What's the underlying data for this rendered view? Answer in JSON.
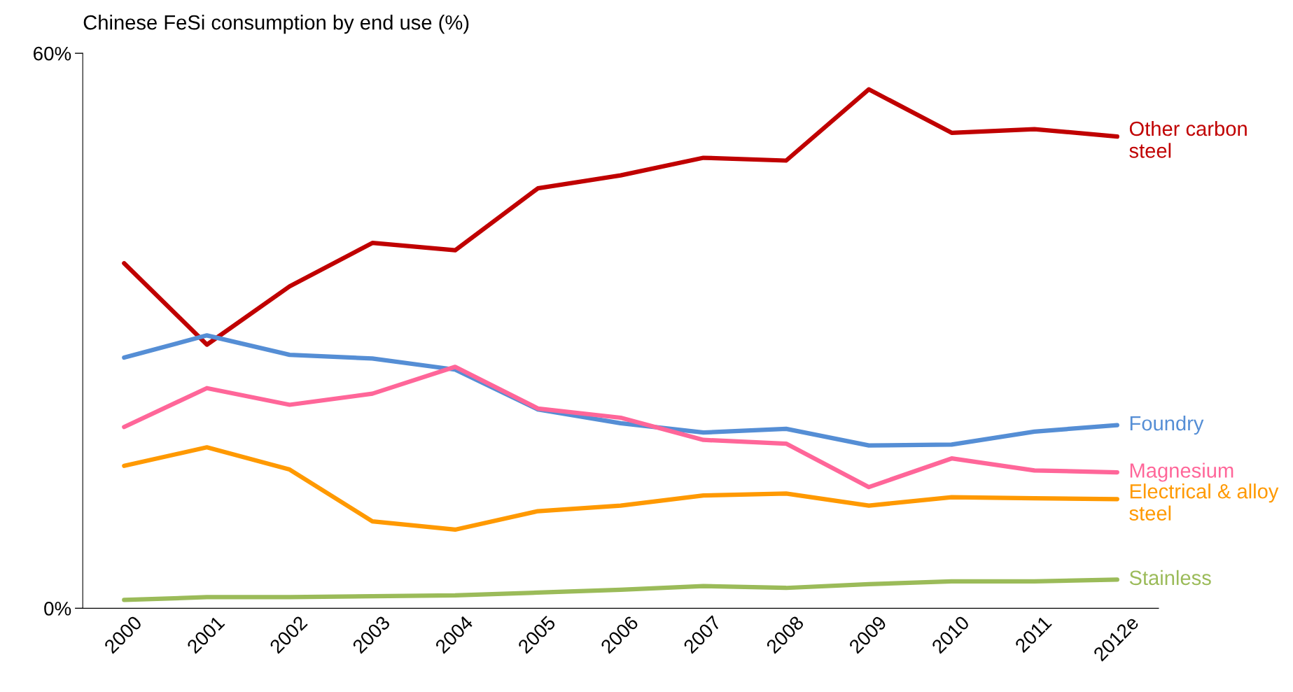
{
  "chart_data": {
    "type": "line",
    "title": "Chinese FeSi consumption by end use (%)",
    "categories": [
      "2000",
      "2001",
      "2002",
      "2003",
      "2004",
      "2005",
      "2006",
      "2007",
      "2008",
      "2009",
      "2010",
      "2011",
      "2012e"
    ],
    "series": [
      {
        "name": "Other carbon steel",
        "color": "#c00000",
        "values": [
          37.3,
          28.5,
          34.8,
          39.5,
          38.7,
          45.4,
          46.8,
          48.7,
          48.4,
          56.1,
          51.4,
          51.8,
          51.0
        ]
      },
      {
        "name": "Foundry",
        "color": "#558ed5",
        "values": [
          27.1,
          29.5,
          27.4,
          27.0,
          25.8,
          21.5,
          20.0,
          19.0,
          19.4,
          17.6,
          17.7,
          19.1,
          19.8
        ]
      },
      {
        "name": "Magnesium",
        "color": "#ff6699",
        "values": [
          19.6,
          23.8,
          22.0,
          23.2,
          26.1,
          21.6,
          20.6,
          18.2,
          17.8,
          13.1,
          16.2,
          14.9,
          14.7
        ]
      },
      {
        "name": "Electrical & alloy steel",
        "color": "#ff9900",
        "values": [
          15.4,
          17.4,
          15.0,
          9.4,
          8.5,
          10.5,
          11.1,
          12.2,
          12.4,
          11.1,
          12.0,
          11.9,
          11.8
        ]
      },
      {
        "name": "Stainless",
        "color": "#9bbb59",
        "values": [
          0.9,
          1.2,
          1.2,
          1.3,
          1.4,
          1.7,
          2.0,
          2.4,
          2.2,
          2.6,
          2.9,
          2.9,
          3.1
        ]
      }
    ],
    "ylim": [
      0,
      60
    ],
    "yticks": [
      {
        "value": 0,
        "label": "0%"
      },
      {
        "value": 60,
        "label": "60%"
      }
    ],
    "grid": false,
    "legend": false,
    "marker": "none",
    "line_style": "solid"
  }
}
